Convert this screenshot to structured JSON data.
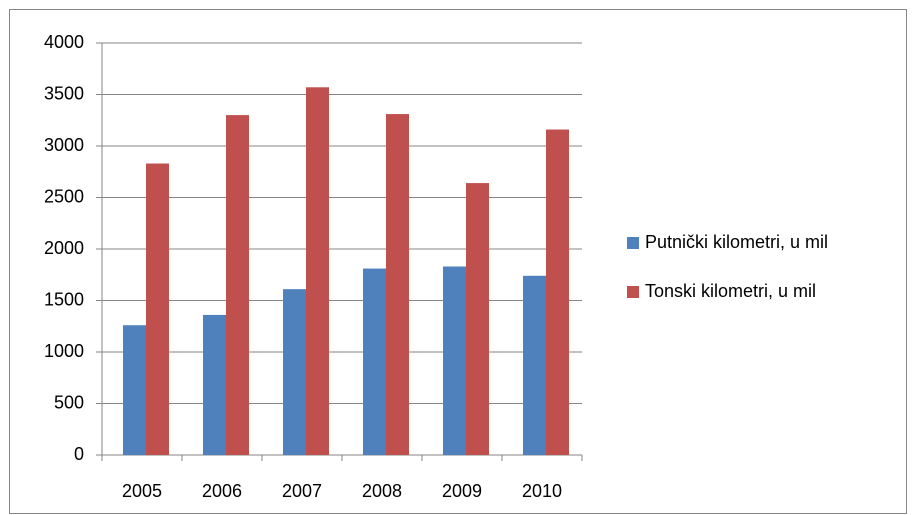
{
  "chart_data": {
    "type": "bar",
    "categories": [
      "2005",
      "2006",
      "2007",
      "2008",
      "2009",
      "2010"
    ],
    "series": [
      {
        "name": "Putnički kilometri, u mil",
        "color": "#4f81bd",
        "values": [
          1260,
          1360,
          1610,
          1810,
          1830,
          1740
        ]
      },
      {
        "name": "Tonski kilometri, u mil",
        "color": "#c0504d",
        "values": [
          2830,
          3300,
          3570,
          3310,
          2640,
          3160
        ]
      }
    ],
    "ylim": [
      0,
      4000
    ],
    "yticks": [
      0,
      500,
      1000,
      1500,
      2000,
      2500,
      3000,
      3500,
      4000
    ],
    "grid": true,
    "legend": "right"
  }
}
